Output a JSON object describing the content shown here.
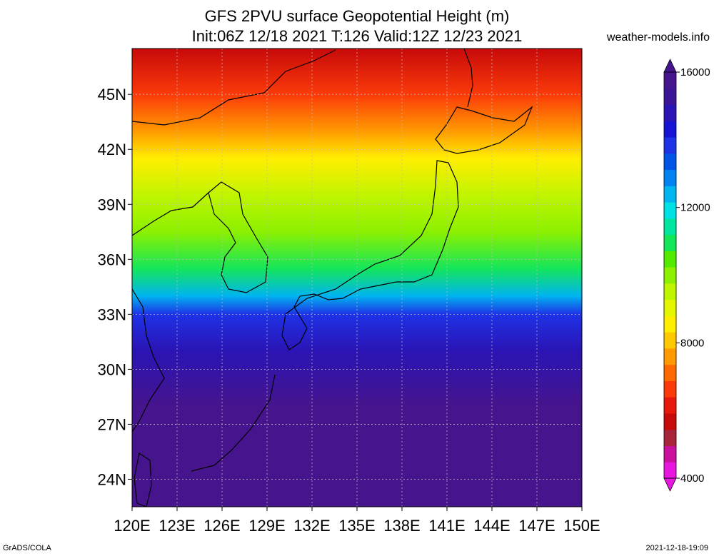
{
  "title_line1": "GFS 2PVU surface Geopotential Height (m)",
  "title_line2": "Init:06Z 12/18 2021 T:126 Valid:12Z 12/23 2021",
  "site": "weather-models.info",
  "footer_left": "GrADS/COLA",
  "footer_right": "2021-12-18-19:09",
  "map": {
    "lon_range": [
      120,
      150
    ],
    "lat_range": [
      22.5,
      47.5
    ],
    "lon_ticks": [
      "120E",
      "123E",
      "126E",
      "129E",
      "132E",
      "135E",
      "138E",
      "141E",
      "144E",
      "147E",
      "150E"
    ],
    "lat_ticks": [
      "45N",
      "42N",
      "39N",
      "36N",
      "33N",
      "30N",
      "27N",
      "24N"
    ],
    "field_bands": [
      {
        "lat": 47.5,
        "value": 5500
      },
      {
        "lat": 45.0,
        "value": 6500
      },
      {
        "lat": 43.0,
        "value": 7500
      },
      {
        "lat": 41.5,
        "value": 8500
      },
      {
        "lat": 39.5,
        "value": 9300
      },
      {
        "lat": 37.5,
        "value": 10000
      },
      {
        "lat": 35.5,
        "value": 11000
      },
      {
        "lat": 34.0,
        "value": 12500
      },
      {
        "lat": 33.0,
        "value": 14000
      },
      {
        "lat": 31.0,
        "value": 15000
      },
      {
        "lat": 28.0,
        "value": 15600
      },
      {
        "lat": 22.5,
        "value": 16000
      }
    ]
  },
  "colorbar": {
    "labels": [
      "16000",
      "12000",
      "8000",
      "4000"
    ],
    "min": 4000,
    "max": 16000,
    "colors": [
      "#e817e0",
      "#c9119e",
      "#a8243b",
      "#c70a0a",
      "#e61a0a",
      "#fb3a0a",
      "#ff6a00",
      "#ff9a00",
      "#ffc800",
      "#ffee00",
      "#e6f500",
      "#c0f500",
      "#8cf000",
      "#55eb00",
      "#14e65a",
      "#00e6a0",
      "#00e1e6",
      "#00b4f0",
      "#0082f0",
      "#0055e6",
      "#1e32e6",
      "#1414d2",
      "#2a14b4",
      "#3c1496",
      "#46148c"
    ]
  }
}
